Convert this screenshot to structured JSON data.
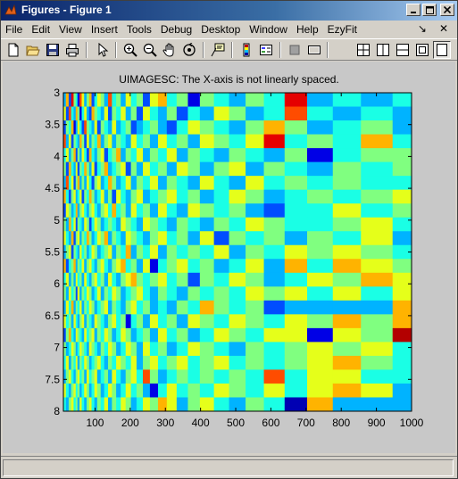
{
  "window": {
    "title": "Figures - Figure 1",
    "buttons": [
      "minimize",
      "maximize",
      "close"
    ]
  },
  "menu": {
    "items": [
      "File",
      "Edit",
      "View",
      "Insert",
      "Tools",
      "Debug",
      "Desktop",
      "Window",
      "Help",
      "EzyFit"
    ],
    "dock_arrows": [
      "↘",
      "✕"
    ]
  },
  "toolbar": {
    "buttons": [
      "new-figure-icon",
      "open-icon",
      "save-icon",
      "print-icon",
      "edit-plot-icon",
      "zoom-in-icon",
      "zoom-out-icon",
      "pan-icon",
      "rotate-3d-icon",
      "data-cursor-icon",
      "colorbar-icon",
      "legend-icon",
      "hide-plot-tools-icon",
      "show-plot-tools-icon",
      "tile-icon",
      "split-horizontal-icon",
      "split-vertical-icon",
      "float-icon",
      "maximize-icon"
    ]
  },
  "plot": {
    "title": "UIMAGESC:  The X-axis is not linearly spaced."
  },
  "chart_data": {
    "type": "heatmap",
    "title": "UIMAGESC:  The X-axis is not linearly spaced.",
    "xlabel": "",
    "ylabel": "",
    "xlim": [
      10,
      1000
    ],
    "ylim": [
      3,
      8
    ],
    "x_ticks": [
      "100",
      "200",
      "300",
      "400",
      "500",
      "600",
      "700",
      "800",
      "900",
      "1000"
    ],
    "y_ticks": [
      "3",
      "3.5",
      "4",
      "4.5",
      "5",
      "5.5",
      "6",
      "6.5",
      "7",
      "7.5",
      "8"
    ],
    "y_reversed": true,
    "colormap": "jet",
    "grid": false,
    "x_edges": [
      10,
      17,
      25,
      32,
      39,
      45,
      50,
      56,
      62,
      69,
      76,
      83,
      90,
      98,
      106,
      116,
      126,
      137,
      148,
      160,
      173,
      187,
      202,
      218,
      236,
      256,
      279,
      304,
      332,
      364,
      398,
      438,
      481,
      528,
      580,
      639,
      703,
      776,
      856,
      946,
      1000
    ],
    "rows": 23,
    "values": [
      [
        0.3,
        0.7,
        0.2,
        0.9,
        0.5,
        0.4,
        0.1,
        0.8,
        0.6,
        0.3,
        0.5,
        0.7,
        0.2,
        0.4,
        0.6,
        0.5,
        0.3,
        0.8,
        0.4,
        0.5,
        0.3,
        0.6,
        0.4,
        0.5,
        0.2,
        0.6,
        0.7,
        0.4,
        0.5,
        0.1,
        0.5,
        0.4,
        0.3,
        0.5,
        0.4,
        0.9,
        0.3,
        0.4,
        0.3,
        0.4
      ],
      [
        0.6,
        0.2,
        0.8,
        0.4,
        0.3,
        0.7,
        0.5,
        0.1,
        0.4,
        0.6,
        0.3,
        0.2,
        0.7,
        0.5,
        0.4,
        0.3,
        0.6,
        0.2,
        0.5,
        0.4,
        0.6,
        0.3,
        0.5,
        0.2,
        0.6,
        0.4,
        0.3,
        0.5,
        0.2,
        0.4,
        0.3,
        0.6,
        0.5,
        0.3,
        0.4,
        0.8,
        0.4,
        0.3,
        0.4,
        0.3
      ],
      [
        0.2,
        0.5,
        0.4,
        0.7,
        0.1,
        0.3,
        0.6,
        0.4,
        0.2,
        0.8,
        0.5,
        0.4,
        0.3,
        0.6,
        0.2,
        0.5,
        0.4,
        0.3,
        0.6,
        0.3,
        0.4,
        0.5,
        0.2,
        0.3,
        0.4,
        0.5,
        0.3,
        0.2,
        0.4,
        0.6,
        0.5,
        0.4,
        0.3,
        0.5,
        0.7,
        0.5,
        0.3,
        0.4,
        0.5,
        0.3
      ],
      [
        0.8,
        0.3,
        0.6,
        0.2,
        0.5,
        0.4,
        0.3,
        0.7,
        0.5,
        0.2,
        0.6,
        0.3,
        0.5,
        0.4,
        0.7,
        0.3,
        0.5,
        0.6,
        0.3,
        0.5,
        0.4,
        0.3,
        0.6,
        0.4,
        0.5,
        0.3,
        0.6,
        0.4,
        0.5,
        0.3,
        0.6,
        0.5,
        0.4,
        0.6,
        0.9,
        0.4,
        0.5,
        0.4,
        0.7,
        0.4
      ],
      [
        0.4,
        0.6,
        0.3,
        0.5,
        0.7,
        0.2,
        0.5,
        0.3,
        0.6,
        0.4,
        0.2,
        0.7,
        0.4,
        0.3,
        0.5,
        0.6,
        0.2,
        0.4,
        0.5,
        0.7,
        0.3,
        0.5,
        0.4,
        0.6,
        0.3,
        0.5,
        0.4,
        0.6,
        0.3,
        0.5,
        0.4,
        0.3,
        0.5,
        0.4,
        0.3,
        0.5,
        0.1,
        0.4,
        0.5,
        0.5
      ],
      [
        0.5,
        0.2,
        0.7,
        0.4,
        0.3,
        0.6,
        0.2,
        0.5,
        0.4,
        0.7,
        0.5,
        0.3,
        0.6,
        0.2,
        0.4,
        0.5,
        0.7,
        0.3,
        0.4,
        0.5,
        0.6,
        0.2,
        0.5,
        0.3,
        0.6,
        0.4,
        0.5,
        0.3,
        0.6,
        0.5,
        0.3,
        0.5,
        0.6,
        0.3,
        0.5,
        0.4,
        0.3,
        0.5,
        0.4,
        0.5
      ],
      [
        0.3,
        0.8,
        0.4,
        0.6,
        0.2,
        0.5,
        0.7,
        0.3,
        0.5,
        0.3,
        0.6,
        0.4,
        0.2,
        0.5,
        0.6,
        0.3,
        0.4,
        0.7,
        0.5,
        0.3,
        0.4,
        0.6,
        0.3,
        0.5,
        0.4,
        0.6,
        0.3,
        0.5,
        0.4,
        0.3,
        0.6,
        0.4,
        0.3,
        0.6,
        0.4,
        0.5,
        0.4,
        0.5,
        0.4,
        0.4
      ],
      [
        0.7,
        0.4,
        0.2,
        0.5,
        0.6,
        0.3,
        0.4,
        0.6,
        0.2,
        0.5,
        0.4,
        0.7,
        0.5,
        0.3,
        0.4,
        0.6,
        0.3,
        0.5,
        0.2,
        0.6,
        0.4,
        0.3,
        0.5,
        0.6,
        0.3,
        0.4,
        0.5,
        0.6,
        0.4,
        0.5,
        0.3,
        0.4,
        0.6,
        0.5,
        0.3,
        0.4,
        0.5,
        0.4,
        0.5,
        0.6
      ],
      [
        0.2,
        0.6,
        0.5,
        0.3,
        0.4,
        0.7,
        0.3,
        0.5,
        0.6,
        0.4,
        0.3,
        0.5,
        0.6,
        0.4,
        0.3,
        0.5,
        0.6,
        0.4,
        0.7,
        0.4,
        0.5,
        0.3,
        0.6,
        0.4,
        0.5,
        0.3,
        0.6,
        0.4,
        0.3,
        0.6,
        0.5,
        0.4,
        0.5,
        0.3,
        0.2,
        0.4,
        0.4,
        0.6,
        0.4,
        0.5
      ],
      [
        0.5,
        0.3,
        0.7,
        0.4,
        0.6,
        0.2,
        0.5,
        0.4,
        0.3,
        0.6,
        0.5,
        0.2,
        0.4,
        0.6,
        0.5,
        0.3,
        0.4,
        0.5,
        0.4,
        0.3,
        0.6,
        0.5,
        0.4,
        0.3,
        0.6,
        0.5,
        0.4,
        0.3,
        0.5,
        0.4,
        0.3,
        0.5,
        0.4,
        0.6,
        0.5,
        0.4,
        0.4,
        0.5,
        0.6,
        0.4
      ],
      [
        0.6,
        0.4,
        0.3,
        0.7,
        0.2,
        0.5,
        0.6,
        0.3,
        0.5,
        0.4,
        0.7,
        0.5,
        0.3,
        0.4,
        0.6,
        0.5,
        0.7,
        0.3,
        0.5,
        0.4,
        0.3,
        0.6,
        0.5,
        0.4,
        0.3,
        0.5,
        0.6,
        0.4,
        0.5,
        0.3,
        0.6,
        0.2,
        0.5,
        0.4,
        0.5,
        0.3,
        0.5,
        0.4,
        0.6,
        0.3
      ],
      [
        0.3,
        0.5,
        0.6,
        0.2,
        0.5,
        0.4,
        0.3,
        0.6,
        0.4,
        0.5,
        0.3,
        0.4,
        0.6,
        0.5,
        0.3,
        0.4,
        0.5,
        0.6,
        0.3,
        0.5,
        0.4,
        0.7,
        0.3,
        0.5,
        0.4,
        0.6,
        0.3,
        0.5,
        0.4,
        0.5,
        0.4,
        0.6,
        0.3,
        0.5,
        0.4,
        0.6,
        0.5,
        0.6,
        0.5,
        0.4
      ],
      [
        0.7,
        0.2,
        0.4,
        0.5,
        0.7,
        0.3,
        0.5,
        0.4,
        0.6,
        0.3,
        0.5,
        0.6,
        0.4,
        0.3,
        0.5,
        0.6,
        0.4,
        0.3,
        0.5,
        0.6,
        0.7,
        0.4,
        0.5,
        0.3,
        0.6,
        0.1,
        0.4,
        0.5,
        0.6,
        0.4,
        0.5,
        0.3,
        0.4,
        0.6,
        0.3,
        0.7,
        0.4,
        0.7,
        0.6,
        0.5
      ],
      [
        0.4,
        0.6,
        0.3,
        0.5,
        0.3,
        0.6,
        0.4,
        0.5,
        0.3,
        0.6,
        0.4,
        0.3,
        0.5,
        0.6,
        0.4,
        0.5,
        0.3,
        0.6,
        0.4,
        0.3,
        0.5,
        0.6,
        0.7,
        0.5,
        0.4,
        0.5,
        0.6,
        0.4,
        0.5,
        0.2,
        0.5,
        0.4,
        0.6,
        0.5,
        0.3,
        0.4,
        0.6,
        0.5,
        0.7,
        0.6
      ],
      [
        0.5,
        0.3,
        0.6,
        0.4,
        0.5,
        0.2,
        0.6,
        0.3,
        0.5,
        0.4,
        0.6,
        0.5,
        0.3,
        0.4,
        0.6,
        0.3,
        0.5,
        0.4,
        0.6,
        0.5,
        0.3,
        0.4,
        0.5,
        0.6,
        0.4,
        0.3,
        0.5,
        0.4,
        0.3,
        0.5,
        0.4,
        0.5,
        0.4,
        0.6,
        0.5,
        0.6,
        0.4,
        0.6,
        0.4,
        0.6
      ],
      [
        0.3,
        0.6,
        0.4,
        0.7,
        0.3,
        0.5,
        0.4,
        0.6,
        0.3,
        0.5,
        0.4,
        0.6,
        0.5,
        0.3,
        0.4,
        0.5,
        0.6,
        0.3,
        0.5,
        0.4,
        0.3,
        0.5,
        0.6,
        0.4,
        0.5,
        0.3,
        0.4,
        0.3,
        0.5,
        0.4,
        0.7,
        0.5,
        0.4,
        0.5,
        0.2,
        0.3,
        0.3,
        0.3,
        0.3,
        0.7
      ],
      [
        0.6,
        0.4,
        0.5,
        0.3,
        0.6,
        0.4,
        0.3,
        0.5,
        0.6,
        0.3,
        0.5,
        0.4,
        0.3,
        0.6,
        0.5,
        0.4,
        0.3,
        0.5,
        0.6,
        0.4,
        0.5,
        0.1,
        0.4,
        0.5,
        0.3,
        0.6,
        0.4,
        0.5,
        0.3,
        0.6,
        0.5,
        0.4,
        0.6,
        0.5,
        0.4,
        0.6,
        0.5,
        0.7,
        0.5,
        0.7
      ],
      [
        0.2,
        0.5,
        0.7,
        0.4,
        0.3,
        0.6,
        0.5,
        0.4,
        0.3,
        0.6,
        0.4,
        0.5,
        0.6,
        0.3,
        0.5,
        0.4,
        0.6,
        0.5,
        0.3,
        0.4,
        0.6,
        0.5,
        0.3,
        0.4,
        0.5,
        0.3,
        0.6,
        0.4,
        0.5,
        0.3,
        0.4,
        0.6,
        0.5,
        0.4,
        0.6,
        0.6,
        0.1,
        0.6,
        0.5,
        0.95
      ],
      [
        0.5,
        0.3,
        0.4,
        0.6,
        0.5,
        0.3,
        0.4,
        0.6,
        0.5,
        0.4,
        0.3,
        0.6,
        0.5,
        0.4,
        0.3,
        0.5,
        0.4,
        0.6,
        0.5,
        0.3,
        0.4,
        0.6,
        0.5,
        0.3,
        0.6,
        0.4,
        0.5,
        0.3,
        0.4,
        0.6,
        0.5,
        0.4,
        0.3,
        0.5,
        0.4,
        0.5,
        0.6,
        0.5,
        0.6,
        0.4
      ],
      [
        0.4,
        0.6,
        0.3,
        0.5,
        0.4,
        0.6,
        0.3,
        0.5,
        0.4,
        0.6,
        0.5,
        0.3,
        0.4,
        0.5,
        0.6,
        0.4,
        0.3,
        0.5,
        0.4,
        0.6,
        0.5,
        0.4,
        0.6,
        0.3,
        0.5,
        0.6,
        0.4,
        0.5,
        0.6,
        0.4,
        0.5,
        0.6,
        0.4,
        0.5,
        0.4,
        0.5,
        0.6,
        0.7,
        0.5,
        0.4
      ],
      [
        0.3,
        0.5,
        0.6,
        0.4,
        0.3,
        0.5,
        0.6,
        0.4,
        0.5,
        0.3,
        0.6,
        0.4,
        0.5,
        0.6,
        0.3,
        0.4,
        0.5,
        0.3,
        0.6,
        0.4,
        0.3,
        0.5,
        0.6,
        0.4,
        0.8,
        0.5,
        0.3,
        0.4,
        0.5,
        0.4,
        0.5,
        0.4,
        0.5,
        0.4,
        0.8,
        0.4,
        0.6,
        0.6,
        0.4,
        0.4
      ],
      [
        0.6,
        0.4,
        0.3,
        0.5,
        0.6,
        0.4,
        0.5,
        0.3,
        0.4,
        0.6,
        0.5,
        0.3,
        0.4,
        0.6,
        0.5,
        0.3,
        0.4,
        0.6,
        0.5,
        0.3,
        0.4,
        0.6,
        0.4,
        0.5,
        0.3,
        0.1,
        0.4,
        0.6,
        0.4,
        0.5,
        0.4,
        0.6,
        0.5,
        0.4,
        0.6,
        0.4,
        0.6,
        0.7,
        0.6,
        0.3
      ],
      [
        0.4,
        0.3,
        0.5,
        0.6,
        0.4,
        0.5,
        0.3,
        0.6,
        0.4,
        0.3,
        0.5,
        0.6,
        0.4,
        0.3,
        0.5,
        0.4,
        0.6,
        0.3,
        0.5,
        0.4,
        0.6,
        0.5,
        0.3,
        0.4,
        0.6,
        0.5,
        0.7,
        0.6,
        0.3,
        0.5,
        0.6,
        0.4,
        0.3,
        0.5,
        0.4,
        0.05,
        0.7,
        0.3,
        0.3,
        0.3
      ]
    ]
  }
}
